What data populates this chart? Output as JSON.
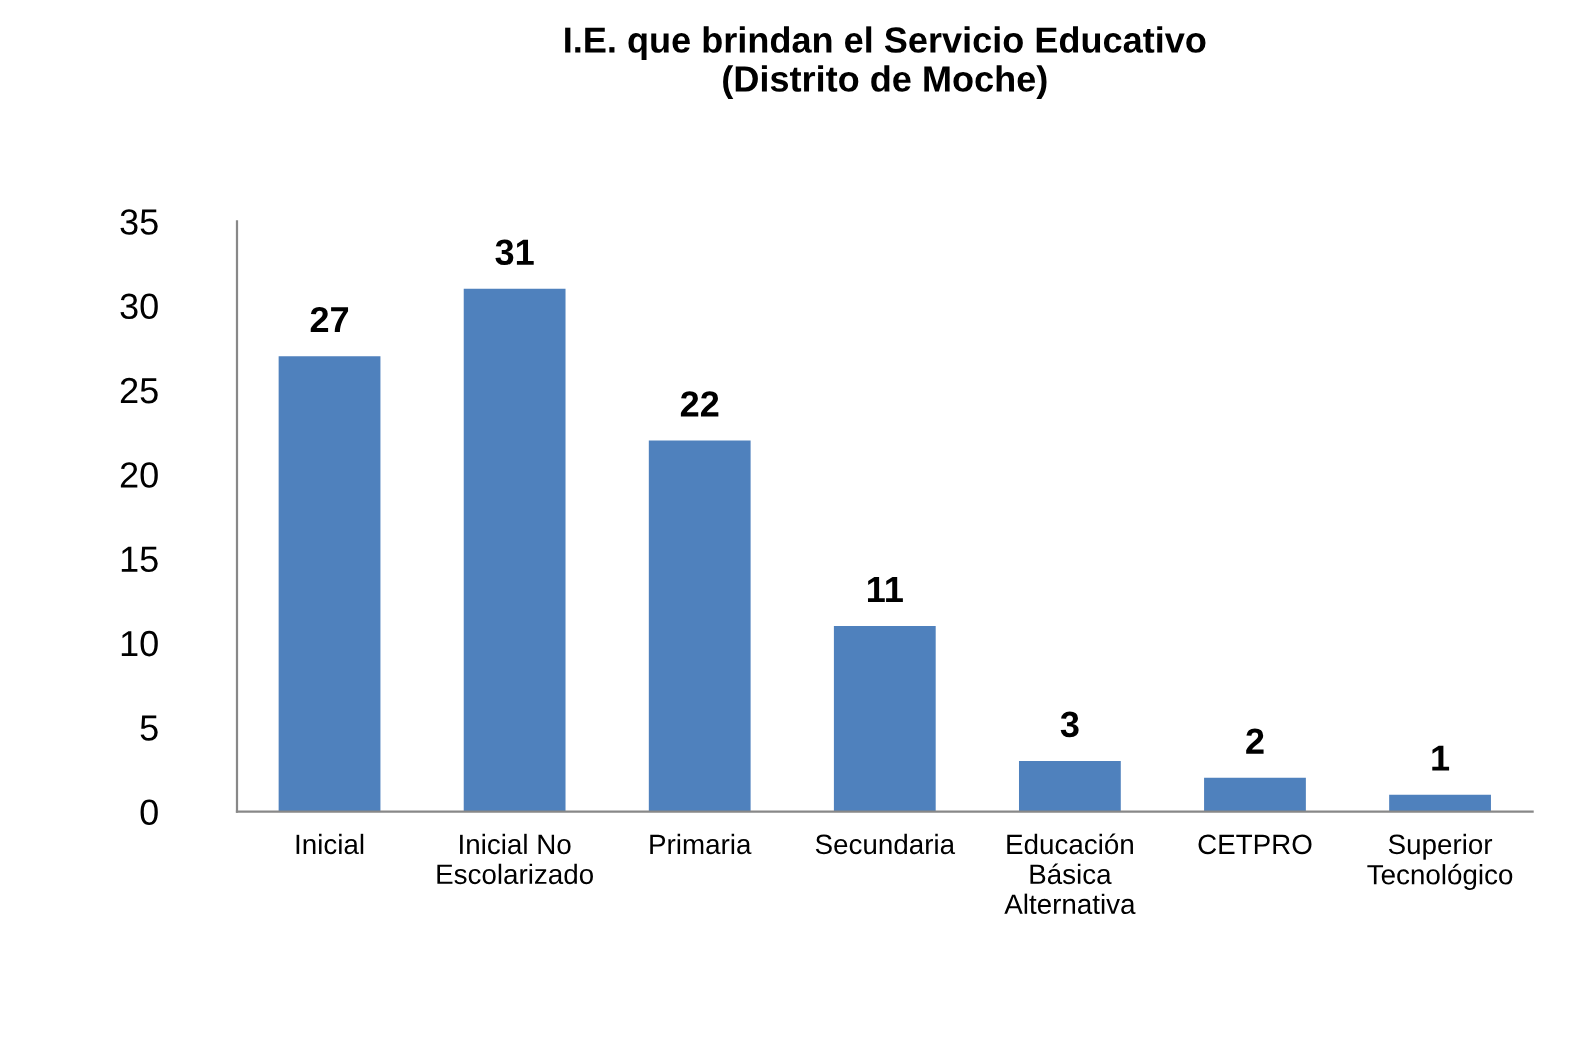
{
  "chart_data": {
    "type": "bar",
    "title": "I.E. que brindan el Servicio Educativo\n(Distrito de Moche)",
    "categories": [
      "Inicial",
      "Inicial No\nEscolarizado",
      "Primaria",
      "Secundaria",
      "Educación\nBásica\nAlternativa",
      "CETPRO",
      "Superior\nTecnológico"
    ],
    "values": [
      27,
      31,
      22,
      11,
      3,
      2,
      1
    ],
    "color": "#4f81bd",
    "ylim": [
      0,
      35
    ],
    "yticks": [
      0,
      5,
      10,
      15,
      20,
      25,
      30,
      35
    ],
    "grid": false,
    "data_labels": true
  }
}
